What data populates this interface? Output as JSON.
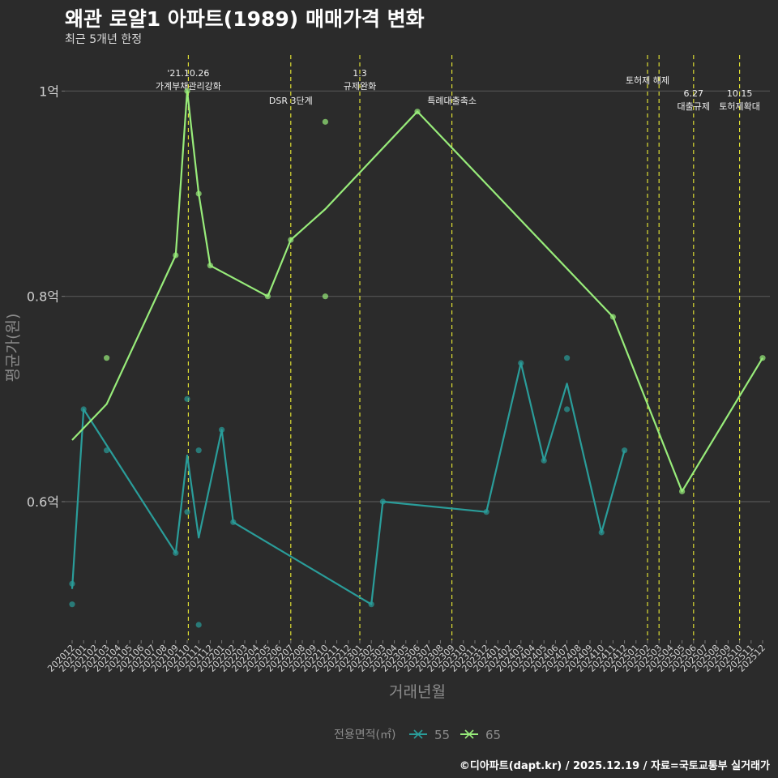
{
  "title": "왜관 로얄1 아파트(1989) 매매가격 변화",
  "subtitle": "최근 5개년 한정",
  "credit": "©디아파트(dapt.kr) / 2025.12.19 / 자료=국토교통부 실거래가",
  "colors": {
    "background": "#2b2b2b",
    "grid": "#555555",
    "event_line": "#dede33",
    "series_55": "#2a9d9a",
    "series_65": "#98ec7a",
    "text": "#d0d0d0"
  },
  "chart_data": {
    "type": "line",
    "title": "왜관 로얄1 아파트(1989) 매매가격 변화",
    "subtitle": "최근 5개년 한정",
    "xlabel": "거래년월",
    "ylabel": "평균가(원)",
    "ylim": [
      0.465,
      1.035
    ],
    "yunit": "억",
    "yticks": [
      0.6,
      0.8,
      1.0
    ],
    "ytick_labels": [
      "0.6억",
      "0.8억",
      "1억"
    ],
    "categories": [
      "202012",
      "202101",
      "202102",
      "202103",
      "202104",
      "202105",
      "202106",
      "202107",
      "202108",
      "202109",
      "202110",
      "202111",
      "202112",
      "202201",
      "202202",
      "202203",
      "202204",
      "202205",
      "202206",
      "202207",
      "202208",
      "202209",
      "202210",
      "202211",
      "202212",
      "202301",
      "202302",
      "202303",
      "202304",
      "202305",
      "202306",
      "202307",
      "202308",
      "202309",
      "202310",
      "202311",
      "202312",
      "202401",
      "202402",
      "202403",
      "202404",
      "202405",
      "202406",
      "202407",
      "202408",
      "202409",
      "202410",
      "202411",
      "202412",
      "202501",
      "202502",
      "202503",
      "202504",
      "202505",
      "202506",
      "202507",
      "202508",
      "202509",
      "202510",
      "202511",
      "202512"
    ],
    "legend_title": "전용면적(㎡)",
    "legend_position": "bottom",
    "series": [
      {
        "name": "55",
        "line": [
          [
            "202012",
            0.515
          ],
          [
            "202101",
            0.69
          ],
          [
            "202109",
            0.55
          ],
          [
            "202110",
            0.645
          ],
          [
            "202111",
            0.565
          ],
          [
            "202201",
            0.67
          ],
          [
            "202202",
            0.58
          ],
          [
            "202302",
            0.5
          ],
          [
            "202303",
            0.6
          ],
          [
            "202312",
            0.59
          ],
          [
            "202403",
            0.735
          ],
          [
            "202405",
            0.64
          ],
          [
            "202407",
            0.715
          ],
          [
            "202410",
            0.57
          ],
          [
            "202412",
            0.65
          ]
        ],
        "points": [
          [
            "202012",
            0.5
          ],
          [
            "202012",
            0.52
          ],
          [
            "202101",
            0.69
          ],
          [
            "202103",
            0.65
          ],
          [
            "202109",
            0.55
          ],
          [
            "202110",
            0.59
          ],
          [
            "202110",
            0.7
          ],
          [
            "202111",
            0.65
          ],
          [
            "202111",
            0.48
          ],
          [
            "202201",
            0.67
          ],
          [
            "202202",
            0.58
          ],
          [
            "202302",
            0.5
          ],
          [
            "202303",
            0.6
          ],
          [
            "202312",
            0.59
          ],
          [
            "202403",
            0.735
          ],
          [
            "202405",
            0.64
          ],
          [
            "202407",
            0.69
          ],
          [
            "202407",
            0.74
          ],
          [
            "202410",
            0.57
          ],
          [
            "202412",
            0.65
          ]
        ]
      },
      {
        "name": "65",
        "line": [
          [
            "202012",
            0.66
          ],
          [
            "202103",
            0.695
          ],
          [
            "202109",
            0.84
          ],
          [
            "202110",
            1.0
          ],
          [
            "202111",
            0.9
          ],
          [
            "202112",
            0.83
          ],
          [
            "202205",
            0.8
          ],
          [
            "202207",
            0.855
          ],
          [
            "202210",
            0.885
          ],
          [
            "202306",
            0.98
          ],
          [
            "202411",
            0.78
          ],
          [
            "202505",
            0.61
          ],
          [
            "202512",
            0.74
          ]
        ],
        "points": [
          [
            "202103",
            0.74
          ],
          [
            "202109",
            0.84
          ],
          [
            "202110",
            1.0
          ],
          [
            "202111",
            0.9
          ],
          [
            "202112",
            0.83
          ],
          [
            "202205",
            0.8
          ],
          [
            "202207",
            0.855
          ],
          [
            "202210",
            0.97
          ],
          [
            "202210",
            0.8
          ],
          [
            "202306",
            0.98
          ],
          [
            "202411",
            0.78
          ],
          [
            "202505",
            0.61
          ],
          [
            "202512",
            0.74
          ]
        ]
      }
    ],
    "events": [
      {
        "month": "202110",
        "offset": 0.1,
        "lines": [
          "'21.10.26",
          "가계부채관리강화"
        ],
        "level": "high"
      },
      {
        "month": "202207",
        "offset": 0.0,
        "lines": [
          "DSR 3단계"
        ],
        "level": "low"
      },
      {
        "month": "202301",
        "offset": 0.0,
        "lines": [
          "1.3",
          "규제완화"
        ],
        "level": "high"
      },
      {
        "month": "202309",
        "offset": 0.0,
        "lines": [
          "특례대출축소"
        ],
        "level": "low"
      },
      {
        "month": "202502",
        "offset": 0.0,
        "lines": [
          "토허제 해제"
        ],
        "level": "mid"
      },
      {
        "month": "202503",
        "offset": 0.0,
        "lines": [],
        "level": "mid"
      },
      {
        "month": "202506",
        "offset": 0.0,
        "lines": [
          "6.27",
          "대출규제"
        ],
        "level": "low2"
      },
      {
        "month": "202510",
        "offset": 0.0,
        "lines": [
          "10.15",
          "토허제확대"
        ],
        "level": "low2"
      }
    ]
  }
}
